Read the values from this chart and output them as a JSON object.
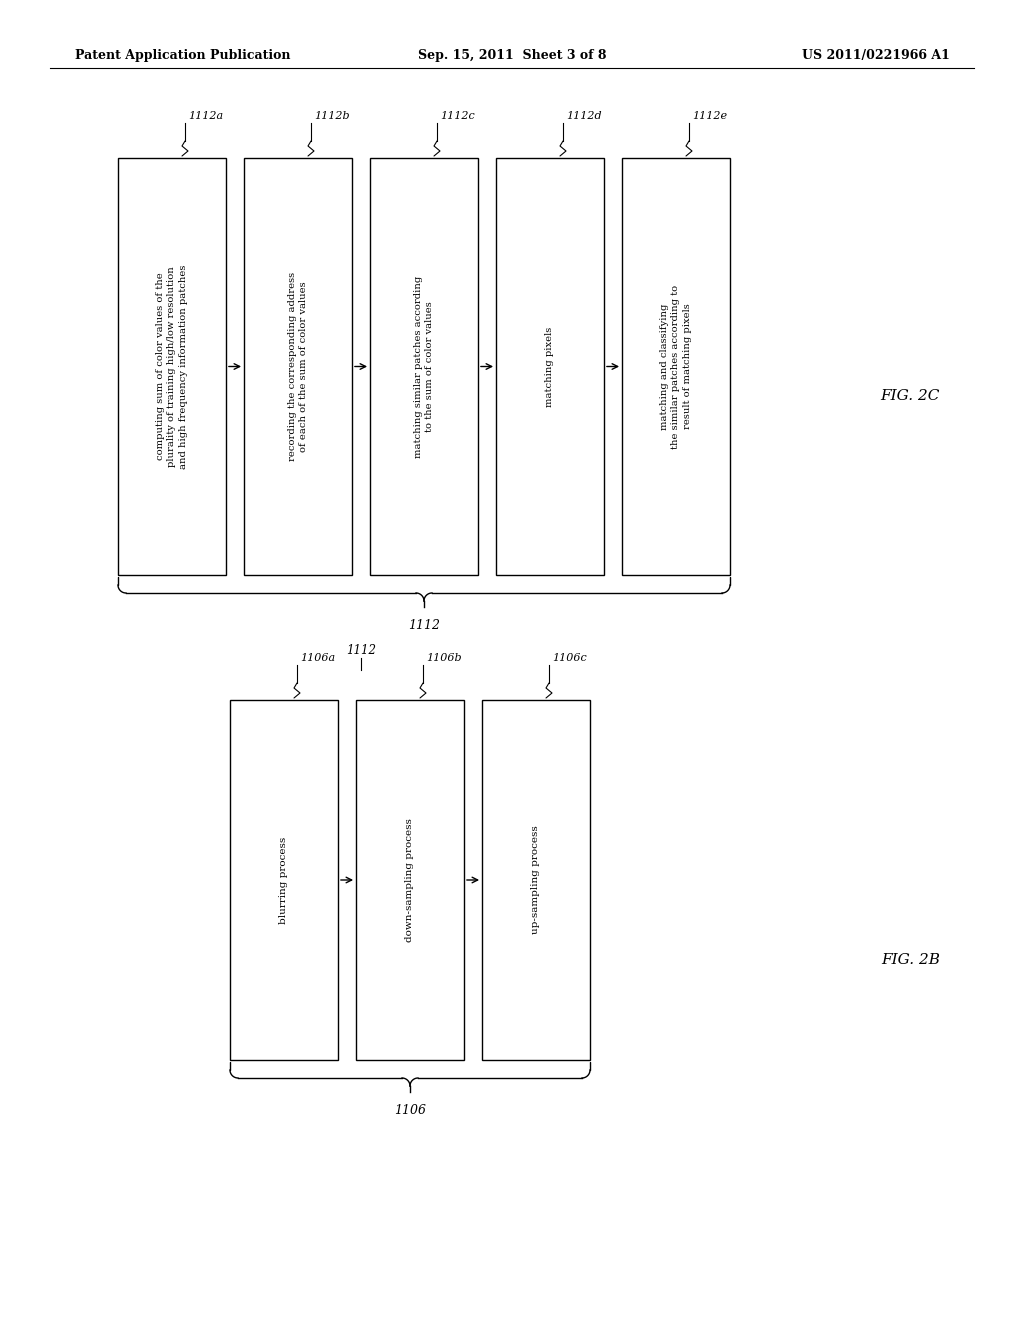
{
  "bg_color": "#ffffff",
  "header_left": "Patent Application Publication",
  "header_mid": "Sep. 15, 2011  Sheet 3 of 8",
  "header_right": "US 2011/0221966 A1",
  "fig2c_label": "FIG. 2C",
  "fig2b_label": "FIG. 2B",
  "fig2c_texts": [
    "computing sum of color values of the\nplurality of training high/low resolution\nand high frequency information patches",
    "recording the corresponding address\nof each of the sum of color values",
    "matching similar patches according\nto the sum of color values",
    "matching pixels",
    "matching and classifying\nthe similar patches according to\nresult of matching pixels"
  ],
  "fig2c_labels": [
    "1112a",
    "1112b",
    "1112c",
    "1112d",
    "1112e"
  ],
  "fig2b_texts": [
    "blurring process",
    "down-sampling process",
    "up-sampling process"
  ],
  "fig2b_labels": [
    "1106a",
    "1106b",
    "1106c"
  ],
  "brace2c_label": "1112",
  "brace2b_label": "1106",
  "connector_label": "1112"
}
